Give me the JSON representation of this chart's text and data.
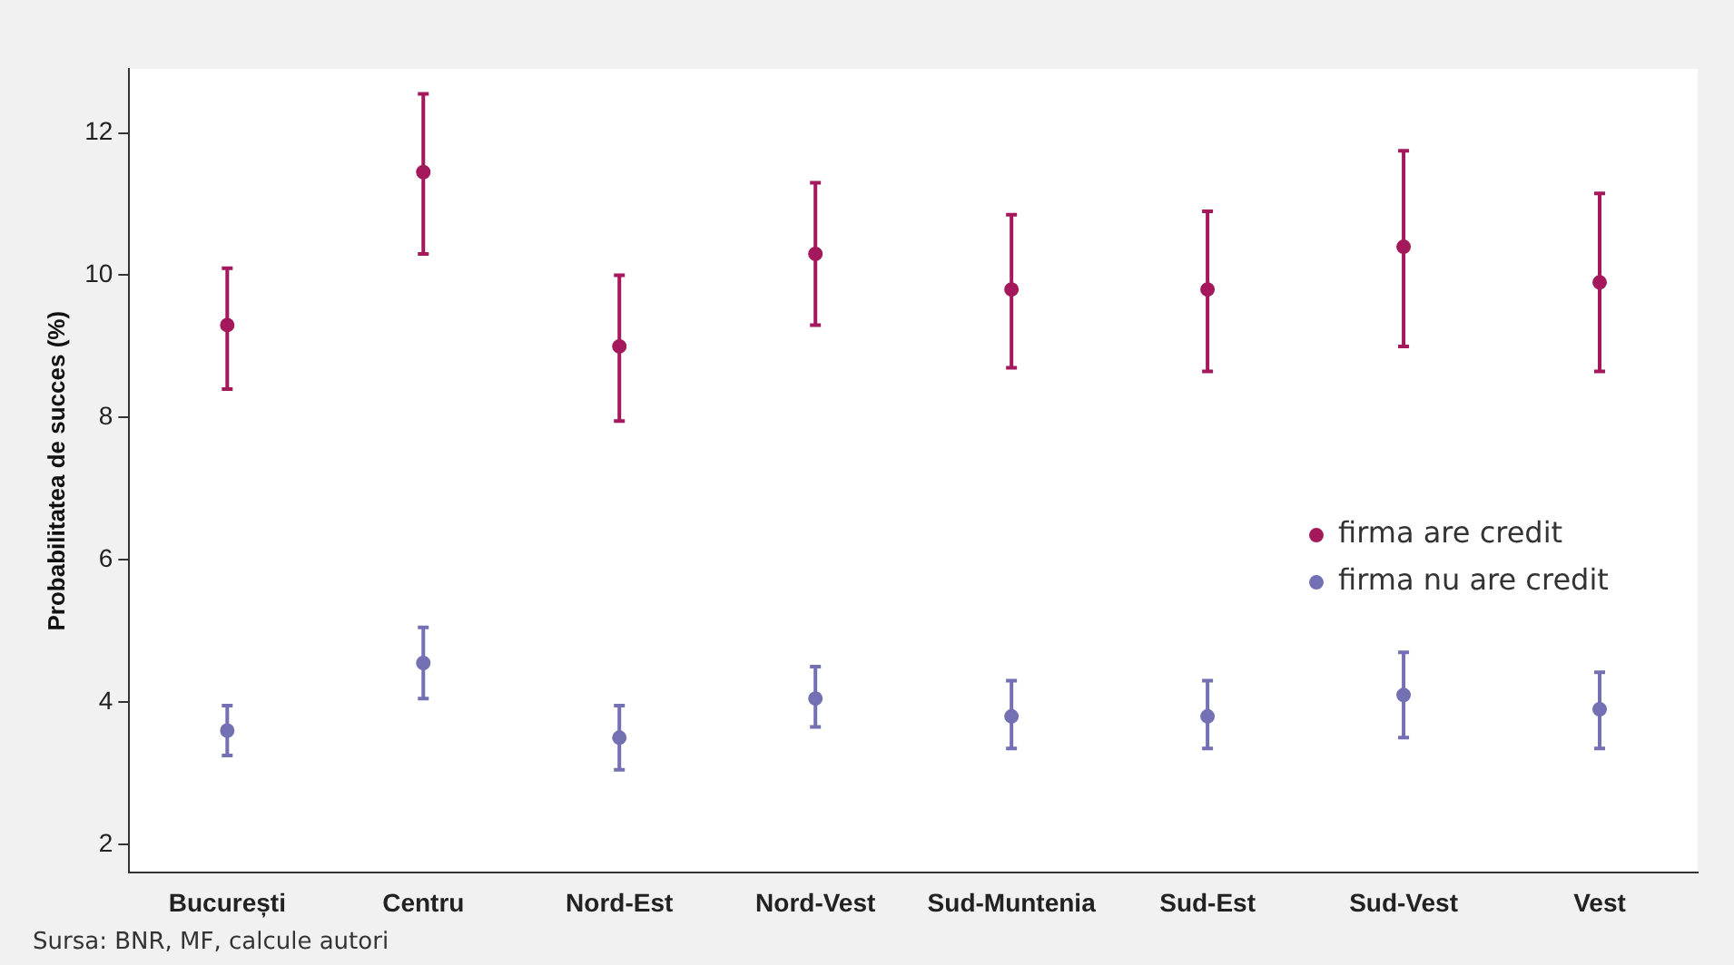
{
  "chart_data": {
    "type": "scatter",
    "ylabel": "Probabilitatea de succes (%)",
    "categories": [
      "București",
      "Centru",
      "Nord-Est",
      "Nord-Vest",
      "Sud-Muntenia",
      "Sud-Est",
      "Sud-Vest",
      "Vest"
    ],
    "series": [
      {
        "name": "firma are credit",
        "color": "#a3195b",
        "values": [
          9.3,
          11.45,
          9.0,
          10.3,
          9.8,
          9.8,
          10.4,
          9.9
        ],
        "errors": [
          [
            8.4,
            10.1
          ],
          [
            10.3,
            12.55
          ],
          [
            7.95,
            10.0
          ],
          [
            9.3,
            11.3
          ],
          [
            8.7,
            10.85
          ],
          [
            8.65,
            10.9
          ],
          [
            9.0,
            11.75
          ],
          [
            8.65,
            11.15
          ]
        ]
      },
      {
        "name": "firma nu are credit",
        "color": "#7370b3",
        "values": [
          3.6,
          4.55,
          3.5,
          4.05,
          3.8,
          3.8,
          4.1,
          3.9
        ],
        "errors": [
          [
            3.25,
            3.95
          ],
          [
            4.05,
            5.05
          ],
          [
            3.05,
            3.95
          ],
          [
            3.65,
            4.5
          ],
          [
            3.35,
            4.3
          ],
          [
            3.35,
            4.3
          ],
          [
            3.5,
            4.7
          ],
          [
            3.35,
            4.42
          ]
        ]
      }
    ],
    "ylim": [
      1.6,
      12.9
    ],
    "yticks": [
      2,
      4,
      6,
      8,
      10,
      12
    ],
    "grid": false,
    "legend": "right",
    "marker": "circle",
    "annotations": [
      "Sursa: BNR, MF, calcule autori"
    ]
  }
}
